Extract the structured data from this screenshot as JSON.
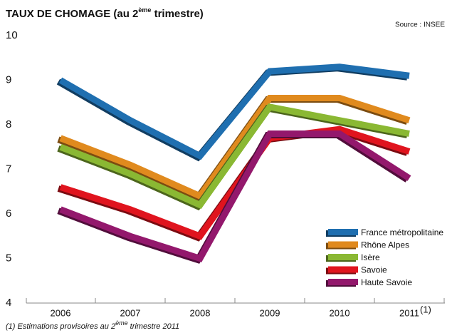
{
  "chart_data": {
    "type": "line",
    "title": [
      "TAUX DE CHOMAGE (au 2",
      "ème",
      " trimestre)"
    ],
    "source": "Source : INSEE",
    "footnote": [
      "(1) Estimations provisoires au 2",
      "ème",
      " trimestre 2011"
    ],
    "categories": [
      "2006",
      "2007",
      "2008",
      "2009",
      "2010",
      "2011"
    ],
    "category_note": "(1)",
    "ylim": [
      4,
      10
    ],
    "yticks": [
      4,
      5,
      6,
      7,
      8,
      9,
      10
    ],
    "legend": "lower right",
    "series": [
      {
        "name": "France métropolitaine",
        "color": "#1f6fb0",
        "values": [
          9.0,
          8.1,
          7.3,
          9.2,
          9.3,
          9.1
        ]
      },
      {
        "name": "Rhône Alpes",
        "color": "#e08a1e",
        "values": [
          7.7,
          7.1,
          6.4,
          8.6,
          8.6,
          8.1
        ]
      },
      {
        "name": "Isère",
        "color": "#8ab833",
        "values": [
          7.5,
          6.9,
          6.2,
          8.4,
          8.1,
          7.8
        ]
      },
      {
        "name": "Savoie",
        "color": "#e0141e",
        "values": [
          6.6,
          6.1,
          5.5,
          7.7,
          7.9,
          7.4
        ]
      },
      {
        "name": "Haute Savoie",
        "color": "#93186c",
        "values": [
          6.1,
          5.5,
          5.0,
          7.8,
          7.8,
          6.8
        ]
      }
    ]
  }
}
